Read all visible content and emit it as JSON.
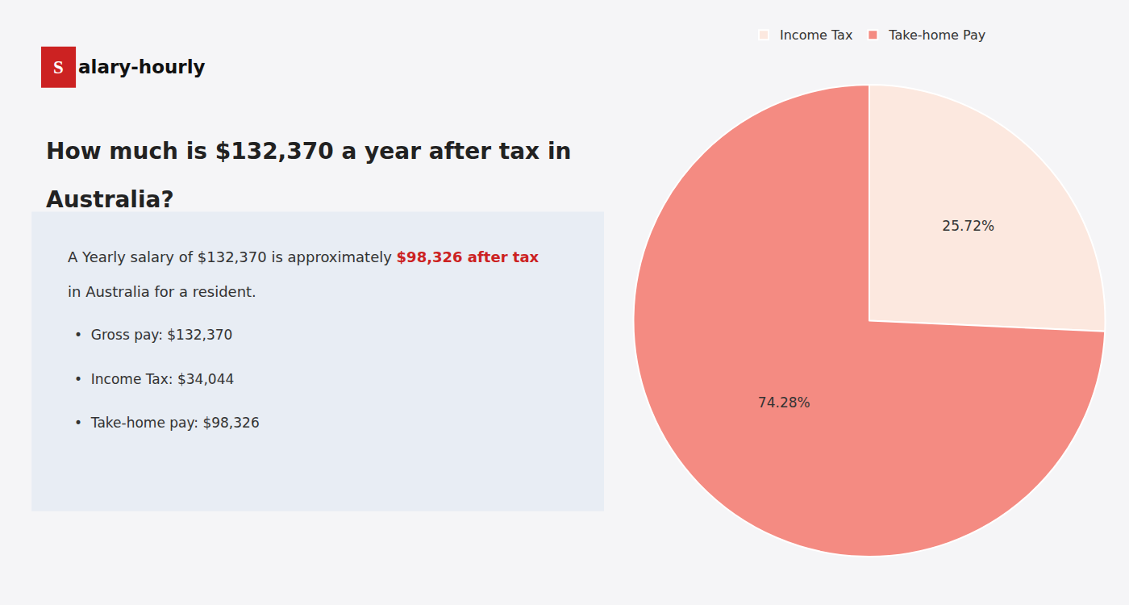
{
  "chart_data": {
    "type": "pie",
    "title": [
      "How much is $132,370 a year after tax in",
      "Australia?"
    ],
    "annotations": [
      {
        "text": "S"
      },
      {
        "text": "alary-hourly"
      },
      {
        "text": "A Yearly salary of $132,370 is approximately "
      },
      {
        "text": "$98,326 after tax",
        "color": "#cc2222"
      },
      {
        "text": "in Australia for a resident."
      },
      {
        "text": "•  Gross pay: $132,370"
      },
      {
        "text": "•  Income Tax: $34,044"
      },
      {
        "text": "•  Take-home pay: $98,326"
      }
    ],
    "categories": [
      "Income Tax",
      "Take-home Pay"
    ],
    "values": [
      25.72,
      74.28
    ],
    "value_labels": [
      "25.72%",
      "74.28%"
    ],
    "colors": [
      "#fce8df",
      "#f48b82"
    ],
    "data_labels": true,
    "legend": "top"
  }
}
